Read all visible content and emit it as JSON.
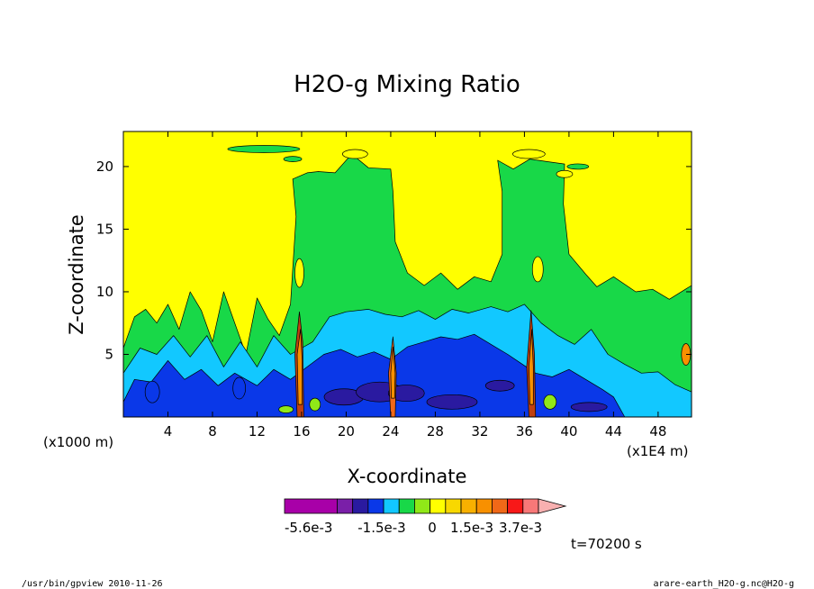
{
  "chart_data": {
    "type": "heatmap",
    "title": "H2O-g Mixing Ratio",
    "xlabel": "X-coordinate",
    "ylabel": "Z-coordinate",
    "x_unit_left": "(x1000 m)",
    "x_unit_right": "(x1E4 m)",
    "x_ticks": [
      4,
      8,
      12,
      16,
      20,
      24,
      28,
      32,
      36,
      40,
      44,
      48
    ],
    "y_ticks": [
      5,
      10,
      15,
      20
    ],
    "xlim": [
      0,
      51
    ],
    "ylim": [
      0,
      22.8
    ],
    "contour_levels": [
      -0.0056,
      -0.0045,
      -0.0035,
      -0.0025,
      -0.0015,
      -0.001,
      -0.0005,
      0,
      0.0005,
      0.001,
      0.0015,
      0.002,
      0.0026,
      0.0032,
      0.0037
    ],
    "colorbar": {
      "colors": [
        "#a800a8",
        "#7a1fa8",
        "#2a1aa0",
        "#0a38e8",
        "#12c8ff",
        "#18d848",
        "#90e818",
        "#ffff00",
        "#f8d800",
        "#f8b000",
        "#f89000",
        "#f06818",
        "#f81818",
        "#f87878"
      ],
      "arrow_color": "#f8b0b0",
      "labels": [
        "-5.6e-3",
        "-1.5e-3",
        "0",
        "1.5e-3",
        "3.7e-3"
      ]
    },
    "time_label": "t=70200 s",
    "footer_left": "/usr/bin/gpview  2010-11-26",
    "footer_right": "arare-earth_H2O-g.nc@H2O-g"
  }
}
